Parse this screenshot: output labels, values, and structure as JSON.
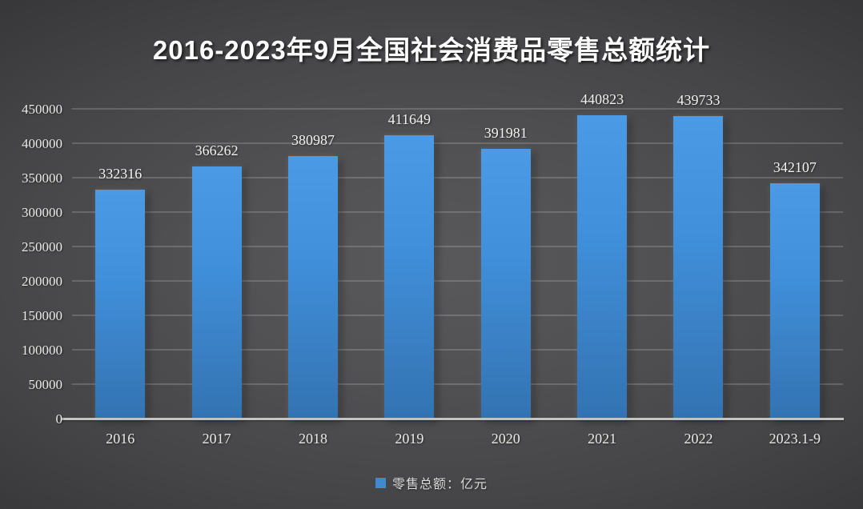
{
  "title": "2016-2023年9月全国社会消费品零售总额统计",
  "legend": {
    "label": "零售总额：亿元",
    "marker_color": "#3e89d0"
  },
  "colors": {
    "background_center": "#59595b",
    "background_edge": "#242427",
    "bar_top": "#4a9ae5",
    "bar_bottom": "#3273b2",
    "gridline": "rgba(255,255,255,0.17)",
    "axis_line": "#c3c3c2",
    "tick_text": "#eceae7",
    "data_label_text": "#f3f2f0",
    "title_text": "#fdfdfd"
  },
  "chart_data": {
    "type": "bar",
    "title": "2016-2023年9月全国社会消费品零售总额统计",
    "categories": [
      "2016",
      "2017",
      "2018",
      "2019",
      "2020",
      "2021",
      "2022",
      "2023.1-9"
    ],
    "values": [
      332316,
      366262,
      380987,
      411649,
      391981,
      440823,
      439733,
      342107
    ],
    "series_name": "零售总额：亿元",
    "xlabel": "",
    "ylabel": "",
    "ylim": [
      0,
      450000
    ],
    "ytick_step": 50000,
    "ytick_labels": [
      "0",
      "50000",
      "100000",
      "150000",
      "200000",
      "250000",
      "300000",
      "350000",
      "400000",
      "450000"
    ],
    "grid": true,
    "data_labels": true,
    "legend_position": "bottom"
  }
}
